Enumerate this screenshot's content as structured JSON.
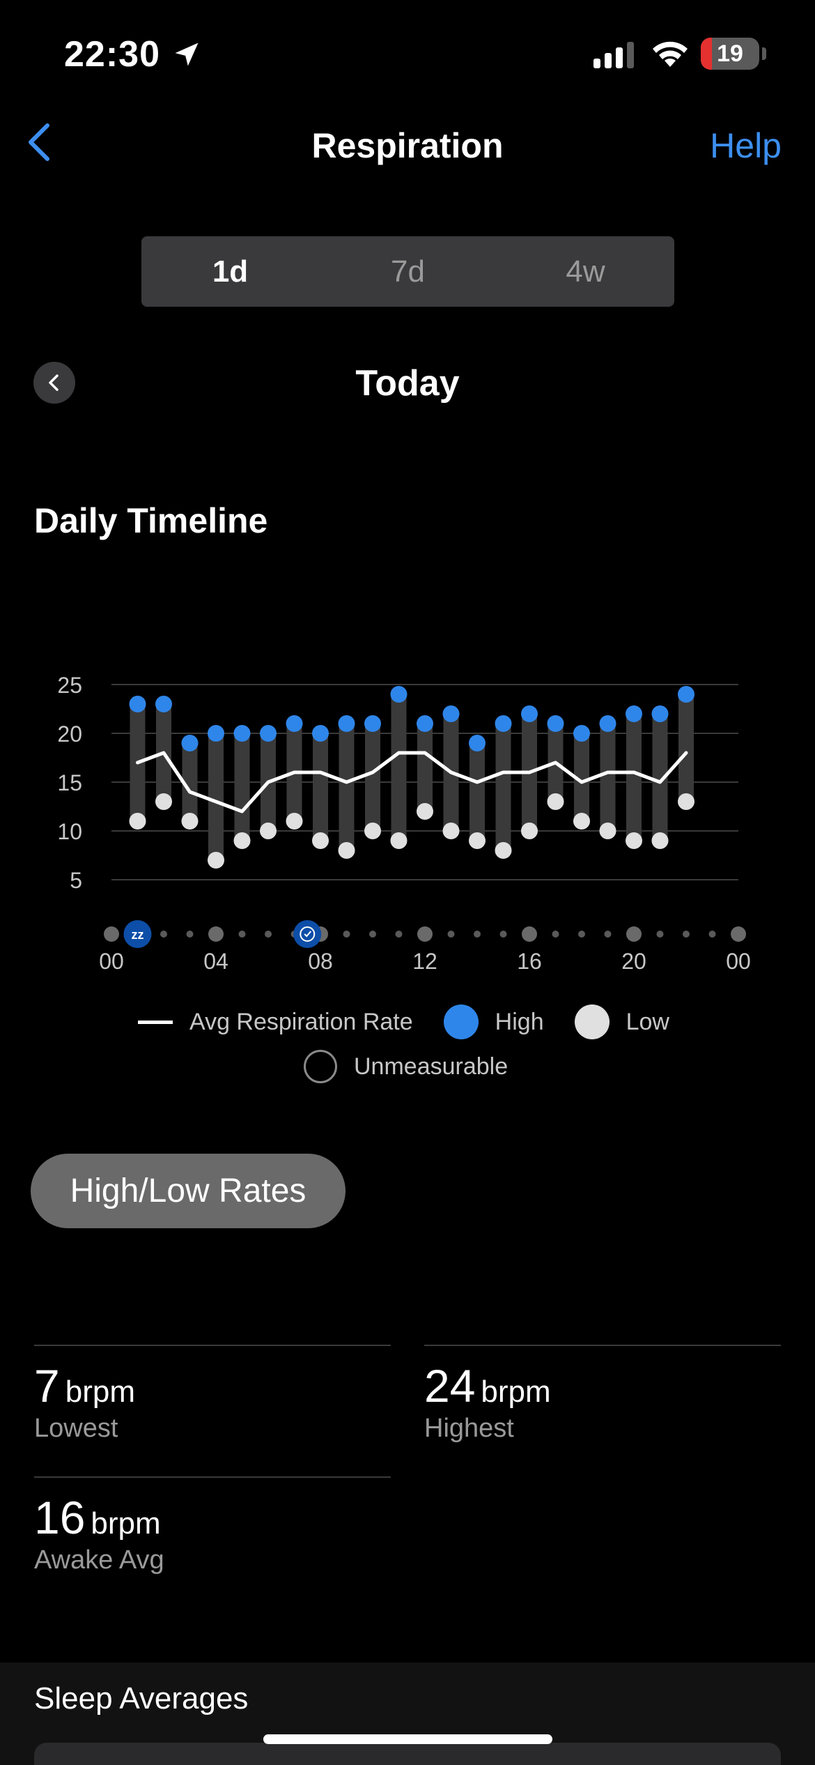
{
  "status_bar": {
    "time": "22:30",
    "battery": "19",
    "battery_level": 0.19
  },
  "nav": {
    "title": "Respiration",
    "help": "Help"
  },
  "segments": [
    {
      "label": "1d",
      "active": true
    },
    {
      "label": "7d",
      "active": false
    },
    {
      "label": "4w",
      "active": false
    }
  ],
  "date": {
    "label": "Today"
  },
  "section": {
    "title": "Daily Timeline"
  },
  "chart_data": {
    "type": "range-line",
    "y_ticks": [
      "25",
      "20",
      "15",
      "10",
      "5"
    ],
    "ylim": [
      5,
      25
    ],
    "x_tick_labels": [
      "00",
      "04",
      "08",
      "12",
      "16",
      "20",
      "00"
    ],
    "x_hours": [
      1,
      2,
      3,
      4,
      5,
      6,
      7,
      8,
      9,
      10,
      11,
      12,
      13,
      14,
      15,
      16,
      17,
      18,
      19,
      20,
      21,
      22
    ],
    "high": [
      23,
      23,
      19,
      20,
      20,
      20,
      21,
      20,
      21,
      21,
      24,
      21,
      22,
      19,
      21,
      22,
      21,
      20,
      21,
      22,
      22,
      24
    ],
    "low": [
      11,
      13,
      11,
      7,
      9,
      10,
      11,
      9,
      8,
      10,
      9,
      12,
      10,
      9,
      8,
      10,
      13,
      11,
      10,
      9,
      9,
      13
    ],
    "avg": [
      17,
      18,
      14,
      13,
      12,
      15,
      16,
      16,
      15,
      16,
      18,
      18,
      16,
      15,
      16,
      16,
      17,
      15,
      16,
      16,
      15,
      18
    ],
    "colors": {
      "high": "#2f86ea",
      "low": "#e0e0e0",
      "avg": "#ffffff",
      "bar": "#3a3a3a",
      "grid": "#3a3a3a"
    },
    "events": [
      {
        "hour": 1,
        "icon": "sleep-icon",
        "label": "zz"
      },
      {
        "hour": 7.5,
        "icon": "alarm-icon"
      }
    ]
  },
  "legend": {
    "avg": "Avg Respiration Rate",
    "high": "High",
    "low": "Low",
    "unmeasurable": "Unmeasurable"
  },
  "button": {
    "label": "High/Low Rates"
  },
  "stats": [
    {
      "value": "7",
      "unit": "brpm",
      "label": "Lowest"
    },
    {
      "value": "24",
      "unit": "brpm",
      "label": "Highest"
    },
    {
      "value": "16",
      "unit": "brpm",
      "label": "Awake Avg"
    }
  ],
  "bottom": {
    "title": "Sleep Averages"
  }
}
